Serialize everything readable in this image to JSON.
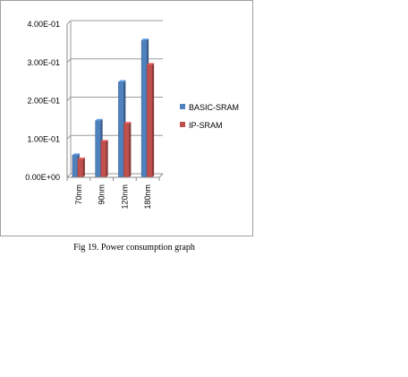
{
  "caption": "Fig 19. Power consumption graph",
  "chart_data": {
    "type": "bar",
    "title": "",
    "xlabel": "",
    "ylabel": "",
    "categories": [
      "70nm",
      "90nm",
      "120nm",
      "180nm"
    ],
    "ylim": [
      0,
      0.4
    ],
    "yticks": [
      0,
      0.1,
      0.2,
      0.3,
      0.4
    ],
    "ytick_labels": [
      "0.00E+00",
      "1.00E-01",
      "2.00E-01",
      "3.00E-01",
      "4.00E-01"
    ],
    "grid": true,
    "legend": "right",
    "series": [
      {
        "name": "BASIC-SRAM",
        "color": "#4f81bd",
        "values": [
          0.058,
          0.148,
          0.249,
          0.358
        ]
      },
      {
        "name": "IP-SRAM",
        "color": "#c0504d",
        "values": [
          0.047,
          0.093,
          0.14,
          0.294
        ]
      }
    ]
  }
}
